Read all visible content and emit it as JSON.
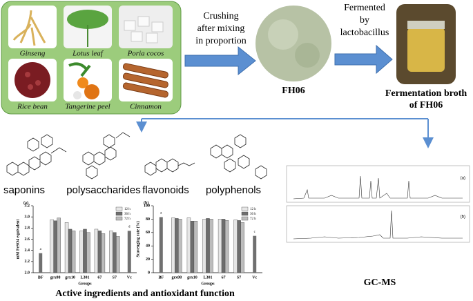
{
  "ingredients": [
    "Ginseng",
    "Lotus leaf",
    "Poria cocos",
    "Rice bean",
    "Tangerine peel",
    "Cinnamon"
  ],
  "step1": {
    "lines": [
      "Crushing",
      "after mixing",
      "in proportion"
    ]
  },
  "powder_label": "FH06",
  "step2": {
    "lines": [
      "Fermented",
      "by",
      "lactobacillus"
    ]
  },
  "broth_label": {
    "lines": [
      "Fermentation broth",
      "of FH06"
    ]
  },
  "compounds": [
    "saponins",
    "polysaccharides",
    "flavonoids",
    "polyphenols"
  ],
  "chart_data": [
    {
      "type": "bar",
      "panel": "(a)",
      "ylabel": "mM FeSO4 equivalent",
      "xlabel": "Groups",
      "categories": [
        "BF",
        "grx08",
        "grx10",
        "L301",
        "67",
        "S7",
        "Vc"
      ],
      "series": [
        {
          "name": "12 h",
          "color": "#e6e6e6",
          "values": [
            null,
            2.95,
            2.9,
            2.75,
            2.78,
            2.75,
            null
          ]
        },
        {
          "name": "36 h",
          "color": "#6e6e6e",
          "values": [
            null,
            2.93,
            2.78,
            2.78,
            2.75,
            2.72,
            null
          ]
        },
        {
          "name": "72 h",
          "color": "#bdbdbd",
          "values": [
            null,
            2.98,
            2.75,
            2.72,
            2.7,
            2.65,
            null
          ]
        }
      ],
      "single_values": [
        2.35,
        null,
        null,
        null,
        null,
        null,
        2.75
      ],
      "single_color": "#707070",
      "single_letters": [
        "a",
        null,
        null,
        null,
        null,
        null,
        "d"
      ],
      "ylim": [
        2.0,
        3.2
      ],
      "yticks": [
        {
          "value": 2.0,
          "label": "2.0"
        },
        2.2,
        2.4,
        2.6,
        2.8,
        {
          "value": 3.0,
          "label": "3.0"
        },
        3.2
      ]
    },
    {
      "type": "bar",
      "panel": "(b)",
      "ylabel": "Scavenging rate (%)",
      "xlabel": "Groups",
      "categories": [
        "BF",
        "grx08",
        "grx10",
        "L301",
        "67",
        "S7",
        "Vc"
      ],
      "series": [
        {
          "name": "12 h",
          "color": "#e6e6e6",
          "values": [
            null,
            82,
            82,
            80,
            80,
            79,
            null
          ]
        },
        {
          "name": "36 h",
          "color": "#6e6e6e",
          "values": [
            null,
            81,
            77,
            81,
            80,
            78,
            null
          ]
        },
        {
          "name": "72 h",
          "color": "#bdbdbd",
          "values": [
            null,
            80,
            77,
            80,
            78,
            75,
            null
          ]
        }
      ],
      "single_values": [
        83,
        null,
        null,
        null,
        null,
        null,
        55
      ],
      "single_color": "#707070",
      "single_letters": [
        "a",
        null,
        null,
        null,
        null,
        null,
        "c"
      ],
      "ylim": [
        0,
        100
      ],
      "yticks": [
        0,
        20,
        40,
        60,
        80,
        100
      ]
    }
  ],
  "gcms": {
    "panels": [
      "(a)",
      "(b)"
    ],
    "label": "GC-MS"
  },
  "caption": "Active ingredients and antioxidant function"
}
